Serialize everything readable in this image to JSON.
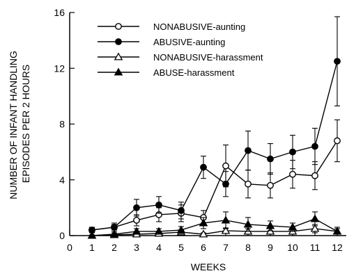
{
  "chart_data": {
    "type": "line",
    "xlabel": "WEEKS",
    "ylabel_lines": [
      "NUMBER OF INFANT HANDLING",
      "EPISODES PER 2 HOURS"
    ],
    "xlim": [
      0,
      12
    ],
    "ylim": [
      0,
      16
    ],
    "x_ticks": [
      0,
      1,
      2,
      3,
      4,
      5,
      6,
      7,
      8,
      9,
      10,
      11,
      12
    ],
    "y_ticks": [
      0,
      4,
      8,
      12,
      16
    ],
    "legend_position": "top-left",
    "grid": false,
    "x": [
      1,
      2,
      3,
      4,
      5,
      6,
      7,
      8,
      9,
      10,
      11,
      12
    ],
    "series": [
      {
        "name": "NONABUSIVE-aunting",
        "marker": "circle-open",
        "values": [
          0.4,
          0.6,
          1.1,
          1.5,
          1.6,
          1.3,
          5.0,
          3.7,
          3.6,
          4.4,
          4.3,
          6.8
        ],
        "err": [
          0.15,
          0.2,
          0.4,
          0.5,
          0.6,
          0.5,
          1.5,
          1.0,
          0.9,
          1.0,
          1.0,
          1.5
        ]
      },
      {
        "name": "ABUSIVE-aunting",
        "marker": "circle-filled",
        "values": [
          0.4,
          0.6,
          2.0,
          2.2,
          1.8,
          4.9,
          3.7,
          6.1,
          5.5,
          6.0,
          6.4,
          12.5
        ],
        "err": [
          0.2,
          0.3,
          0.6,
          0.6,
          0.6,
          0.8,
          0.9,
          1.4,
          1.1,
          1.2,
          1.3,
          3.2
        ]
      },
      {
        "name": "NONABUSIVE-harassment",
        "marker": "triangle-open",
        "values": [
          0.0,
          0.05,
          0.1,
          0.15,
          0.25,
          0.1,
          0.35,
          0.3,
          0.3,
          0.3,
          0.5,
          0.3
        ],
        "err": [
          0.05,
          0.05,
          0.1,
          0.15,
          0.15,
          0.1,
          0.2,
          0.2,
          0.2,
          0.2,
          0.3,
          0.2
        ]
      },
      {
        "name": "ABUSE-harassment",
        "marker": "triangle-filled",
        "values": [
          0.0,
          0.1,
          0.3,
          0.3,
          0.4,
          0.9,
          1.1,
          0.8,
          0.7,
          0.6,
          1.2,
          0.3
        ],
        "err": [
          0.05,
          0.1,
          0.2,
          0.2,
          0.25,
          0.4,
          0.6,
          0.5,
          0.35,
          0.3,
          0.5,
          0.3
        ]
      }
    ]
  }
}
